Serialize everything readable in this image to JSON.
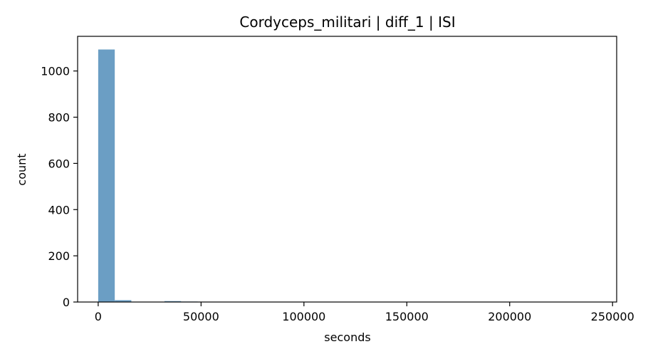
{
  "chart_data": {
    "type": "bar",
    "title": "Cordyceps_militari | diff_1 | ISI",
    "xlabel": "seconds",
    "ylabel": "count",
    "xlim": [
      -10000,
      252000
    ],
    "ylim": [
      0,
      1150
    ],
    "xticks": [
      0,
      50000,
      100000,
      150000,
      200000,
      250000
    ],
    "yticks": [
      0,
      200,
      400,
      600,
      800,
      1000
    ],
    "bin_edges": [
      0,
      8055,
      16110,
      24165,
      32220,
      40275,
      48330,
      56385,
      64440,
      72495,
      80550,
      88605,
      96660,
      104715,
      112770,
      120825,
      128880,
      136935,
      144990,
      153045,
      161100,
      169155,
      177210,
      185265,
      193320,
      201375,
      209430,
      217485,
      225540,
      233595,
      241650
    ],
    "values": [
      1093,
      8,
      1,
      1,
      4,
      2,
      1,
      1,
      0,
      1,
      0,
      0,
      0,
      0,
      0,
      0,
      0,
      1,
      0,
      0,
      0,
      0,
      0,
      0,
      0,
      0,
      0,
      0,
      0,
      1
    ],
    "bar_color": "#6b9ec4",
    "grid": false,
    "legend": "none"
  }
}
